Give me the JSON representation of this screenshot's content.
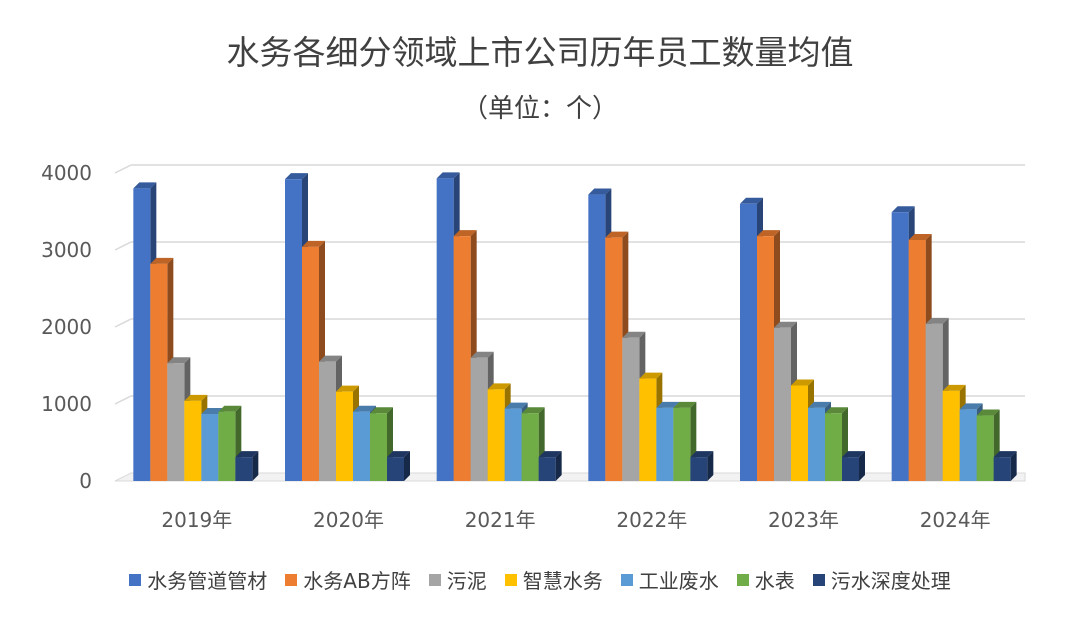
{
  "title": "水务各细分领域上市公司历年员工数量均值",
  "subtitle": "（单位：个）",
  "chart_data": {
    "type": "bar",
    "categories": [
      "2019年",
      "2020年",
      "2021年",
      "2022年",
      "2023年",
      "2024年"
    ],
    "ylim": [
      0,
      4000
    ],
    "yticks": [
      0,
      1000,
      2000,
      3000,
      4000
    ],
    "grid": true,
    "legend_position": "bottom",
    "series": [
      {
        "name": "水务管道管材",
        "color": "#4472C4",
        "values": [
          3800,
          3920,
          3930,
          3720,
          3600,
          3490
        ]
      },
      {
        "name": "水务AB方阵",
        "color": "#ED7D31",
        "values": [
          2820,
          3040,
          3180,
          3160,
          3180,
          3130
        ]
      },
      {
        "name": "污泥",
        "color": "#A5A5A5",
        "values": [
          1530,
          1550,
          1600,
          1860,
          1990,
          2040
        ]
      },
      {
        "name": "智慧水务",
        "color": "#FFC000",
        "values": [
          1040,
          1160,
          1190,
          1330,
          1240,
          1170
        ]
      },
      {
        "name": "工业废水",
        "color": "#5B9BD5",
        "values": [
          870,
          900,
          940,
          950,
          950,
          930
        ]
      },
      {
        "name": "水表",
        "color": "#70AD47",
        "values": [
          900,
          880,
          880,
          950,
          880,
          850
        ]
      },
      {
        "name": "污水深度处理",
        "color": "#264478",
        "values": [
          310,
          310,
          310,
          310,
          310,
          310
        ]
      }
    ]
  }
}
